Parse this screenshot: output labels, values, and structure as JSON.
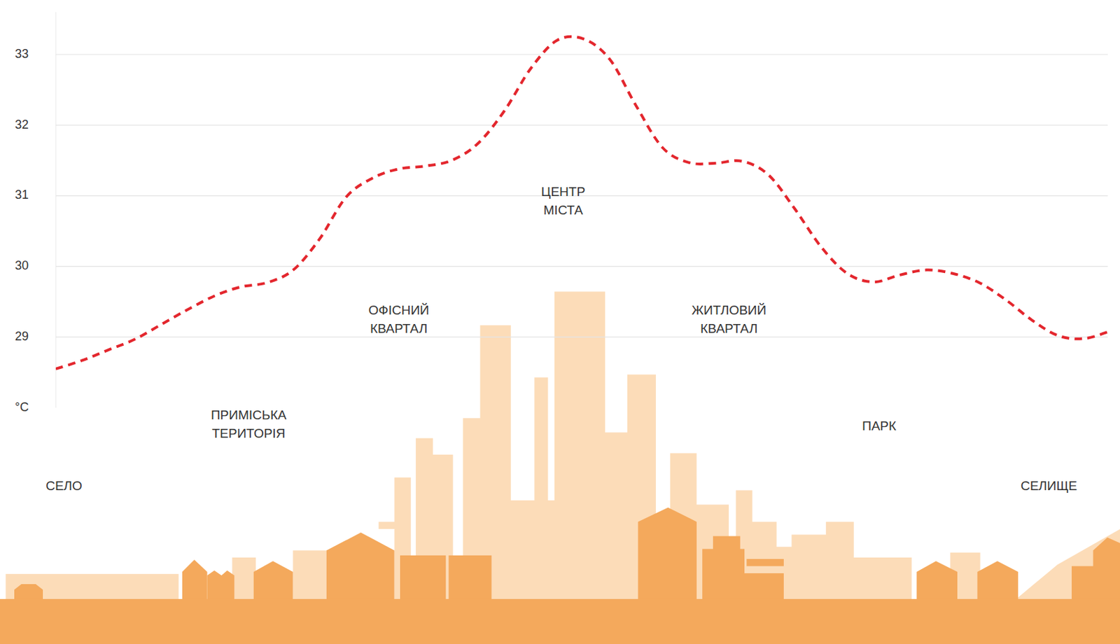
{
  "chart_data": {
    "type": "line",
    "y_label": "°C",
    "categories": [
      "СЕЛО",
      null,
      null,
      null,
      null,
      null,
      null,
      "ПРИМІСЬКА ТЕРИТОРІЯ",
      null,
      null,
      null,
      null,
      null,
      "ОФІСНИЙ КВАРТАЛ",
      null,
      null,
      null,
      null,
      null,
      "ЦЕНТР МІСТА",
      null,
      null,
      null,
      null,
      null,
      "ЖИТЛОВИЙ КВАРТАЛ",
      null,
      null,
      null,
      null,
      null,
      "ПАРК",
      null,
      null,
      null,
      null,
      null,
      null,
      "СЕЛИЩЕ",
      null,
      null
    ],
    "values": [
      28.55,
      28.67,
      28.82,
      28.97,
      29.18,
      29.39,
      29.58,
      29.71,
      29.77,
      29.95,
      30.39,
      30.98,
      31.25,
      31.38,
      31.42,
      31.5,
      31.74,
      32.2,
      32.8,
      33.2,
      33.22,
      32.93,
      32.27,
      31.68,
      31.47,
      31.46,
      31.49,
      31.3,
      30.82,
      30.28,
      29.9,
      29.78,
      29.88,
      29.95,
      29.9,
      29.77,
      29.53,
      29.24,
      29.02,
      28.98,
      29.09
    ],
    "color": "#e3262d",
    "line_style": "dashed",
    "ylim": [
      28,
      33.6
    ],
    "yticks": [
      29,
      30,
      31,
      32,
      33
    ],
    "grid": true
  }
}
